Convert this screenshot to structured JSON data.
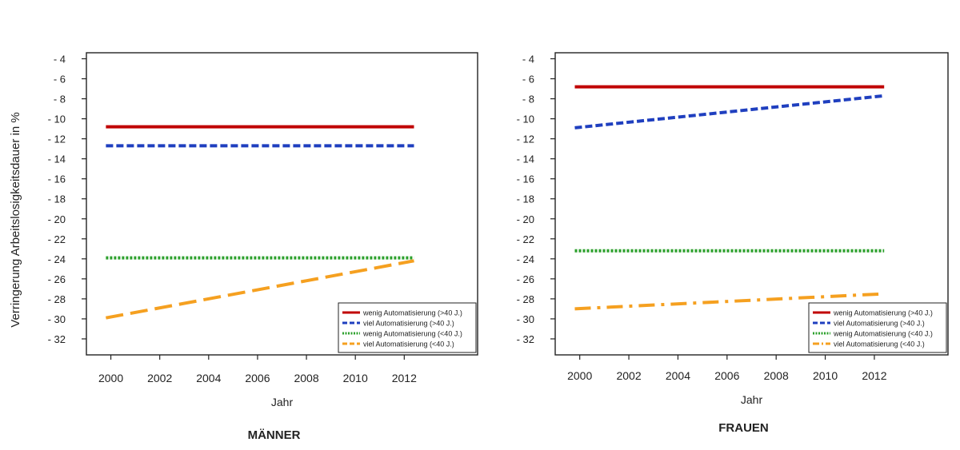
{
  "chart_data": [
    {
      "type": "line",
      "title": "MÄNNER",
      "xlabel": "Jahr",
      "ylabel": "Verringerung Arbeitslosigkeitsdauer in %",
      "x_ticks": [
        2000,
        2002,
        2004,
        2006,
        2008,
        2010,
        2012
      ],
      "y_ticks": [
        -4,
        -6,
        -8,
        -10,
        -12,
        -14,
        -16,
        -18,
        -20,
        -22,
        -24,
        -26,
        -28,
        -30,
        -32
      ],
      "y_tick_labels": [
        "- 4",
        "- 6",
        "- 8",
        "- 10",
        "- 12",
        "- 14",
        "- 16",
        "- 18",
        "- 20",
        "- 22",
        "- 24",
        "- 26",
        "- 28",
        "- 30",
        "- 32"
      ],
      "xlim": [
        1999,
        2015
      ],
      "ylim": [
        -33.6,
        -3.4
      ],
      "grid": false,
      "legend_position": "bottom-right",
      "series": [
        {
          "name": "wenig Automatisierung (>40 J.)",
          "x": [
            1999.8,
            2012.4
          ],
          "y": [
            -10.8,
            -10.8
          ],
          "color": "#c00000",
          "style": "solid"
        },
        {
          "name": "viel Automatisierung (>40 J.)",
          "x": [
            1999.8,
            2012.4
          ],
          "y": [
            -12.7,
            -12.7
          ],
          "color": "#1f3fbf",
          "style": "dashed"
        },
        {
          "name": "wenig Automatisierung (<40 J.)",
          "x": [
            1999.8,
            2012.4
          ],
          "y": [
            -23.9,
            -23.9
          ],
          "color": "#2ca02c",
          "style": "dotted"
        },
        {
          "name": "viel Automatisierung (<40 J.)",
          "x": [
            1999.8,
            2012.4
          ],
          "y": [
            -29.9,
            -24.2
          ],
          "color": "#f5a020",
          "style": "longdash"
        }
      ]
    },
    {
      "type": "line",
      "title": "FRAUEN",
      "xlabel": "Jahr",
      "ylabel": "",
      "x_ticks": [
        2000,
        2002,
        2004,
        2006,
        2008,
        2010,
        2012
      ],
      "y_ticks": [
        -4,
        -6,
        -8,
        -10,
        -12,
        -14,
        -16,
        -18,
        -20,
        -22,
        -24,
        -26,
        -28,
        -30,
        -32
      ],
      "y_tick_labels": [
        "- 4",
        "- 6",
        "- 8",
        "- 10",
        "- 12",
        "- 14",
        "- 16",
        "- 18",
        "- 20",
        "- 22",
        "- 24",
        "- 26",
        "- 28",
        "- 30",
        "- 32"
      ],
      "xlim": [
        1999,
        2015
      ],
      "ylim": [
        -33.6,
        -3.4
      ],
      "grid": false,
      "legend_position": "bottom-right",
      "series": [
        {
          "name": "wenig Automatisierung (>40 J.)",
          "x": [
            1999.8,
            2012.4
          ],
          "y": [
            -6.8,
            -6.8
          ],
          "color": "#c00000",
          "style": "solid"
        },
        {
          "name": "viel Automatisierung (>40 J.)",
          "x": [
            1999.8,
            2012.4
          ],
          "y": [
            -10.9,
            -7.7
          ],
          "color": "#1f3fbf",
          "style": "dashed"
        },
        {
          "name": "wenig Automatisierung (<40 J.)",
          "x": [
            1999.8,
            2012.4
          ],
          "y": [
            -23.2,
            -23.2
          ],
          "color": "#2ca02c",
          "style": "dotted"
        },
        {
          "name": "viel Automatisierung (<40 J.)",
          "x": [
            1999.8,
            2012.4
          ],
          "y": [
            -29.0,
            -27.5
          ],
          "color": "#f5a020",
          "style": "dashdot"
        }
      ]
    }
  ]
}
